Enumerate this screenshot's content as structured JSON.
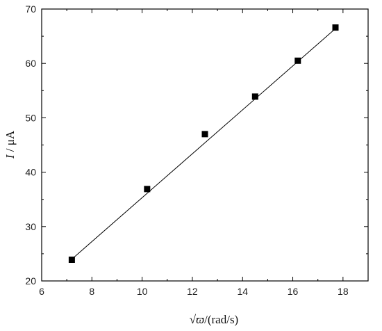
{
  "chart_data": {
    "type": "scatter",
    "title": "",
    "xlabel": "√ϖ/(rad/s)",
    "ylabel_var": "I",
    "ylabel_unit": " / μA",
    "x_prefix": "√",
    "x_var": "ϖ",
    "x_unit": "/(rad/s)",
    "xlim": [
      6,
      19
    ],
    "ylim": [
      20,
      70
    ],
    "xticks": [
      6,
      8,
      10,
      12,
      14,
      16,
      18
    ],
    "yticks": [
      20,
      30,
      40,
      50,
      60,
      70
    ],
    "grid": false,
    "marker": "square",
    "color": "#000000",
    "series": [
      {
        "points": [
          {
            "x": 7.2,
            "y": 23.9
          },
          {
            "x": 10.2,
            "y": 36.9
          },
          {
            "x": 12.5,
            "y": 47.0
          },
          {
            "x": 14.5,
            "y": 53.9
          },
          {
            "x": 16.2,
            "y": 60.5
          },
          {
            "x": 17.7,
            "y": 66.6
          }
        ]
      }
    ],
    "fit_line": {
      "x": [
        7.2,
        17.7
      ],
      "y": [
        24.0,
        66.4
      ]
    }
  }
}
